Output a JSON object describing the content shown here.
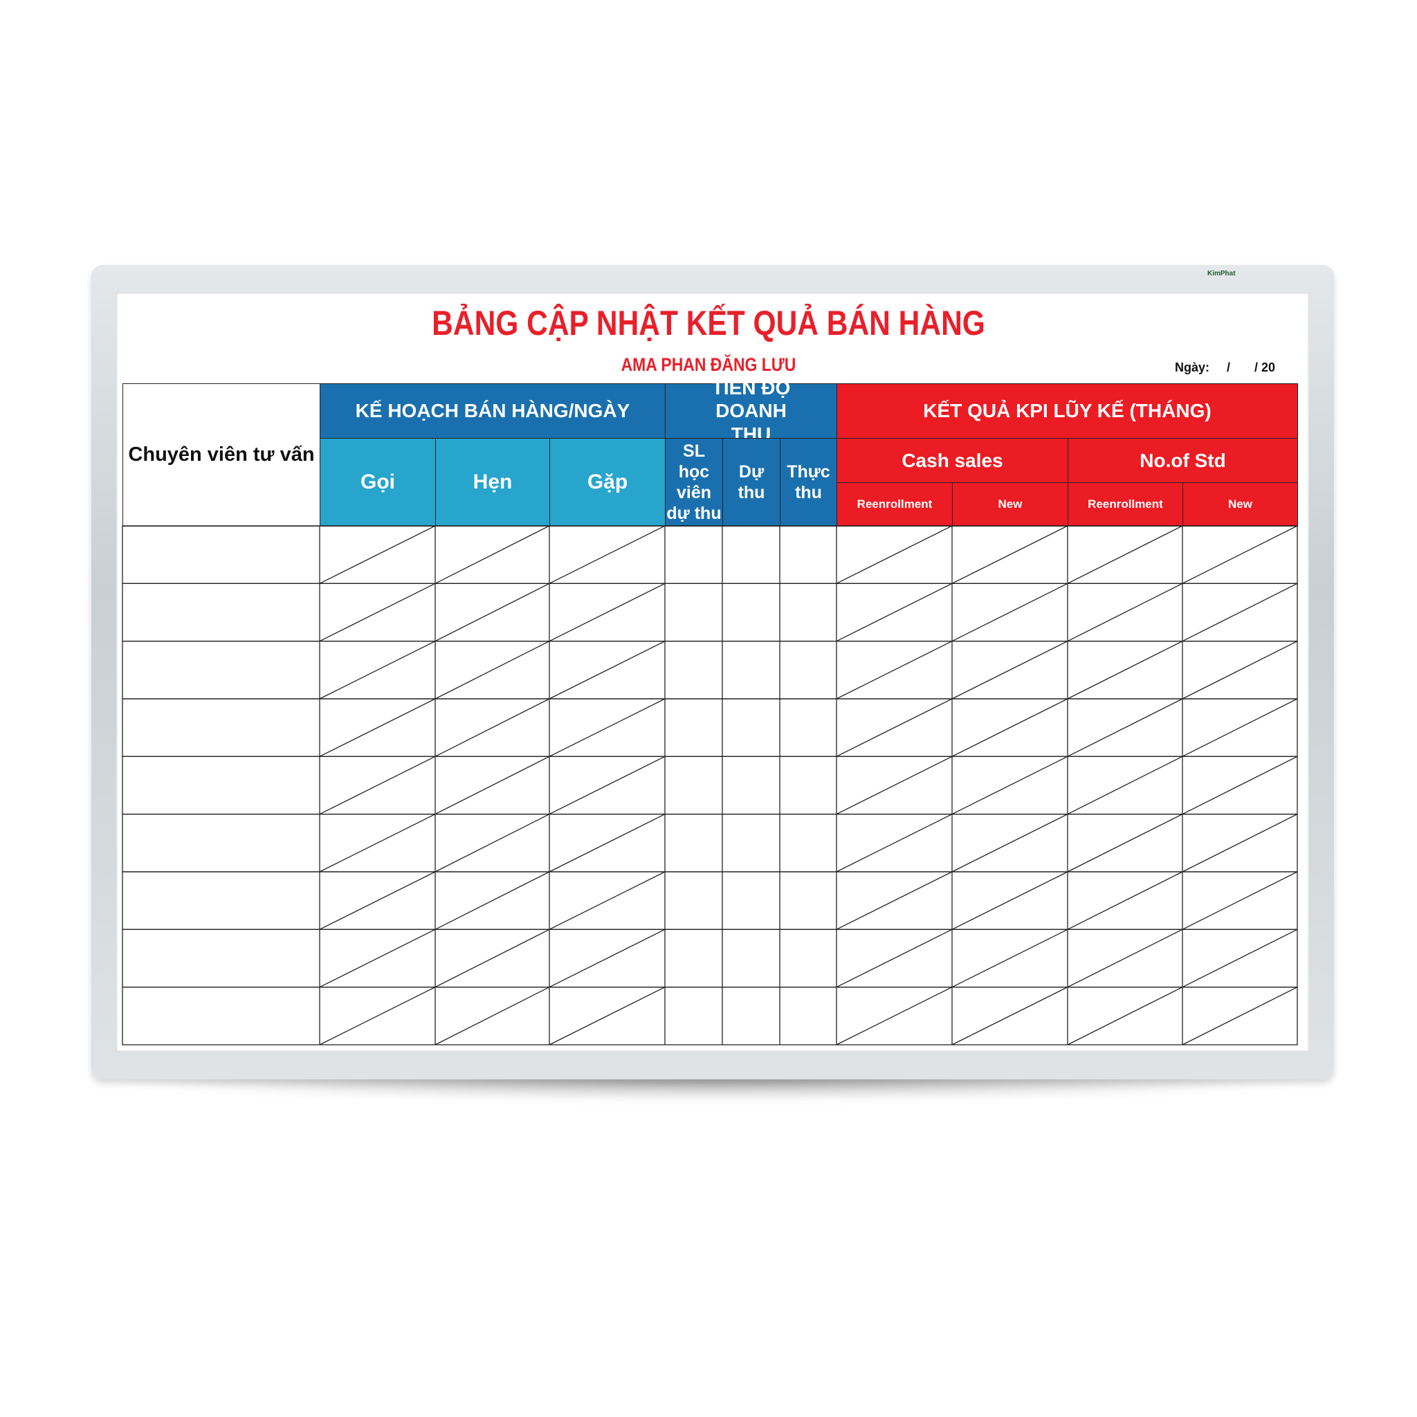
{
  "board": {
    "brand": "KimPhat",
    "title": "BẢNG CẬP NHẬT KẾT QUẢ BÁN HÀNG",
    "subtitle": "AMA PHAN ĐĂNG LƯU",
    "date_label": "Ngày:     /       / 20"
  },
  "table": {
    "consultant_header": "Chuyên viên tư vấn",
    "plan_header": "KẾ HOẠCH BÁN HÀNG/NGÀY",
    "plan_columns": [
      "Gọi",
      "Hẹn",
      "Gặp"
    ],
    "progress_header": "TIẾN ĐỘ DOANH THU",
    "progress_columns": [
      "SL học viên dự thu",
      "Dự thu",
      "Thực thu"
    ],
    "kpi_header": "KẾT QUẢ KPI LŨY KẾ (THÁNG)",
    "kpi_groups": [
      "Cash sales",
      "No.of Std"
    ],
    "kpi_columns": [
      "Reenrollment",
      "New",
      "Reenrollment",
      "New"
    ],
    "row_count": 9
  },
  "colors": {
    "title_red": "#e8202a",
    "dark_blue": "#1a70ae",
    "light_blue": "#27a5cd",
    "red": "#ec1c24"
  }
}
